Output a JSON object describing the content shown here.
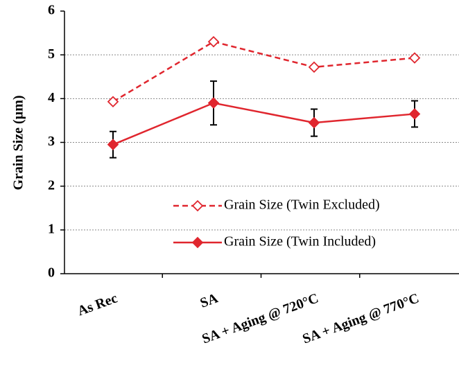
{
  "chart_data": {
    "type": "line",
    "y_label": "Grain Size (µm)",
    "categories": [
      "As Rec",
      "SA",
      "SA + Aging @ 720°C",
      "SA + Aging @ 770°C"
    ],
    "series": [
      {
        "name": "Grain Size (Twin Excluded)",
        "color": "#e0262e",
        "dashed": true,
        "marker": "diamond-open",
        "values": [
          3.93,
          5.3,
          4.72,
          4.93
        ]
      },
      {
        "name": "Grain Size (Twin Included)",
        "color": "#e0262e",
        "dashed": false,
        "marker": "diamond",
        "values": [
          2.95,
          3.9,
          3.45,
          3.65
        ],
        "errors": [
          0.3,
          0.5,
          0.31,
          0.3
        ]
      }
    ],
    "ylim": [
      0,
      6
    ],
    "yticks": [
      0,
      1,
      2,
      3,
      4,
      5,
      6
    ],
    "grid": true,
    "legend": "lower right"
  }
}
